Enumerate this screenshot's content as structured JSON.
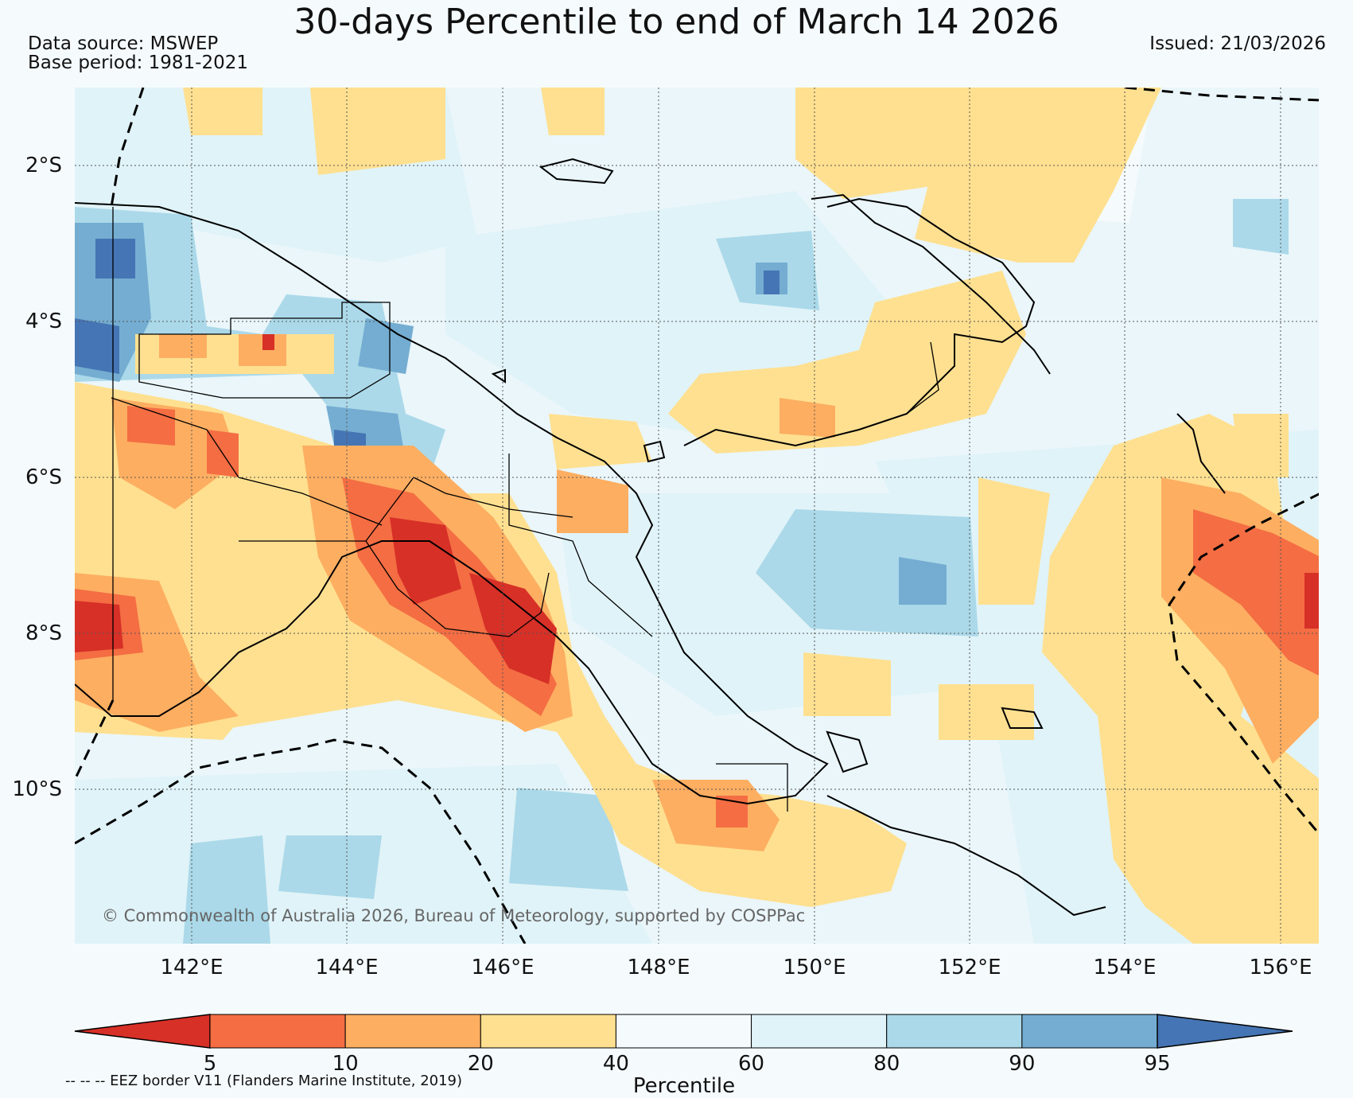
{
  "title": "30-days Percentile to end of March 14 2026",
  "data_source": "Data source: MSWEP",
  "base_period": "Base period: 1981-2021",
  "issued": "Issued: 21/03/2026",
  "lat_labels": [
    "2°S",
    "4°S",
    "6°S",
    "8°S",
    "10°S"
  ],
  "lon_labels": [
    "142°E",
    "144°E",
    "146°E",
    "148°E",
    "150°E",
    "152°E",
    "154°E",
    "156°E"
  ],
  "copyright": "© Commonwealth of Australia 2026, Bureau of Meteorology, supported by COSPPac",
  "colorbar": {
    "ticks": [
      "5",
      "10",
      "20",
      "40",
      "60",
      "80",
      "90",
      "95"
    ],
    "label": "Percentile",
    "colors": [
      "#d73027",
      "#f46d43",
      "#fdae61",
      "#fee090",
      "#f5fbfd",
      "#e0f3f8",
      "#abd9e9",
      "#74add1",
      "#4575b4"
    ]
  },
  "eez_note": "-- -- -- EEZ border V11 (Flanders Marine Institute, 2019)"
}
